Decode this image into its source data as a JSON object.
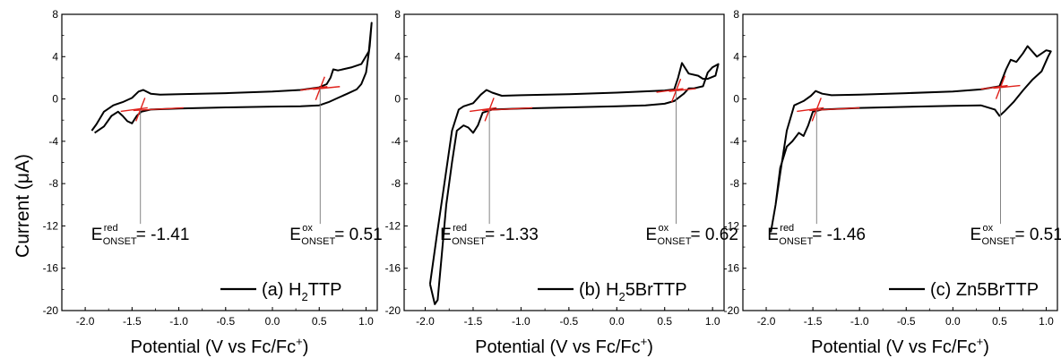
{
  "figure": {
    "ylabel": "Current (μA)",
    "xlabel": "Potential (V vs Fc/Fc",
    "xlabel_sup": "+",
    "xlabel_end": ")"
  },
  "chart_data": [
    {
      "type": "line",
      "panel": "a",
      "legend": "(a) H₂TTP",
      "legend_parts": [
        "(a) H",
        "2",
        "TTP"
      ],
      "xlim": [
        -2.25,
        1.12
      ],
      "ylim": [
        -20,
        8
      ],
      "xticks": [
        -2.0,
        -1.5,
        -1.0,
        -0.5,
        0.0,
        0.5,
        1.0
      ],
      "xtick_labels": [
        "-2.0",
        "-1.5",
        "-1.0",
        "-0.5",
        "0.0",
        "0.5",
        "1.0"
      ],
      "yticks": [
        8,
        4,
        0,
        -4,
        -8,
        -12,
        -16,
        -20
      ],
      "ytick_labels": [
        "8",
        "4",
        "0",
        "-4",
        "-8",
        "-12",
        "-16",
        "-20"
      ],
      "onset_red": {
        "label": "E",
        "sup": "red",
        "sub": "ONSET",
        "value": "= -1.41",
        "x": -1.41,
        "y": -1.0
      },
      "onset_ox": {
        "label": "E",
        "sup": "ox",
        "sub": "ONSET",
        "value": "= 0.51",
        "x": 0.51,
        "y": 1.0
      },
      "series": [
        {
          "values": [
            [
              -1.9,
              -3.2
            ],
            [
              -1.8,
              -2.6
            ],
            [
              -1.72,
              -1.6
            ],
            [
              -1.65,
              -1.2
            ],
            [
              -1.6,
              -1.6
            ],
            [
              -1.55,
              -2.1
            ],
            [
              -1.5,
              -2.3
            ],
            [
              -1.45,
              -1.6
            ],
            [
              -1.4,
              -1.2
            ],
            [
              -1.3,
              -1.0
            ],
            [
              -1.0,
              -0.9
            ],
            [
              -0.5,
              -0.8
            ],
            [
              0.0,
              -0.72
            ],
            [
              0.3,
              -0.7
            ],
            [
              0.5,
              -0.6
            ],
            [
              0.6,
              -0.3
            ],
            [
              0.7,
              0.1
            ],
            [
              0.8,
              0.5
            ],
            [
              0.9,
              0.9
            ],
            [
              0.95,
              1.4
            ],
            [
              1.0,
              2.5
            ],
            [
              1.04,
              5.0
            ],
            [
              1.06,
              7.2
            ],
            [
              1.03,
              4.5
            ],
            [
              0.95,
              3.3
            ],
            [
              0.85,
              3.0
            ],
            [
              0.75,
              2.8
            ],
            [
              0.7,
              2.7
            ],
            [
              0.65,
              2.8
            ],
            [
              0.62,
              2.0
            ],
            [
              0.58,
              1.4
            ],
            [
              0.5,
              1.1
            ],
            [
              0.3,
              0.85
            ],
            [
              0.0,
              0.7
            ],
            [
              -0.5,
              0.55
            ],
            [
              -1.0,
              0.45
            ],
            [
              -1.2,
              0.4
            ],
            [
              -1.3,
              0.5
            ],
            [
              -1.38,
              0.85
            ],
            [
              -1.43,
              0.7
            ],
            [
              -1.5,
              0.1
            ],
            [
              -1.6,
              -0.3
            ],
            [
              -1.7,
              -0.6
            ],
            [
              -1.8,
              -1.2
            ],
            [
              -1.88,
              -2.4
            ],
            [
              -1.93,
              -3.0
            ]
          ]
        }
      ]
    },
    {
      "type": "line",
      "panel": "b",
      "legend": "(b) H₂5BrTTP",
      "legend_parts": [
        "(b) H",
        "2",
        "5BrTTP"
      ],
      "xlim": [
        -2.22,
        1.12
      ],
      "ylim": [
        -20,
        8
      ],
      "xticks": [
        -2.0,
        -1.5,
        -1.0,
        -0.5,
        0.0,
        0.5,
        1.0
      ],
      "xtick_labels": [
        "-2.0",
        "-1.5",
        "-1.0",
        "-0.5",
        "0.0",
        "0.5",
        "1.0"
      ],
      "yticks": [
        8,
        4,
        0,
        -4,
        -8,
        -12,
        -16,
        -20
      ],
      "ytick_labels": [
        "8",
        "4",
        "0",
        "-4",
        "-8",
        "-12",
        "-16",
        "-20"
      ],
      "onset_red": {
        "label": "E",
        "sup": "red",
        "sub": "ONSET",
        "value": "= -1.33",
        "x": -1.33,
        "y": -1.0
      },
      "onset_ox": {
        "label": "E",
        "sup": "ox",
        "sub": "ONSET",
        "value": "= 0.62",
        "x": 0.62,
        "y": 0.8
      },
      "series": [
        {
          "values": [
            [
              -1.95,
              -17.5
            ],
            [
              -1.9,
              -19.4
            ],
            [
              -1.87,
              -19.0
            ],
            [
              -1.83,
              -15.0
            ],
            [
              -1.78,
              -10.0
            ],
            [
              -1.72,
              -6.0
            ],
            [
              -1.67,
              -3.0
            ],
            [
              -1.6,
              -2.5
            ],
            [
              -1.55,
              -2.7
            ],
            [
              -1.5,
              -3.2
            ],
            [
              -1.45,
              -2.5
            ],
            [
              -1.4,
              -1.3
            ],
            [
              -1.3,
              -1.0
            ],
            [
              -1.0,
              -0.9
            ],
            [
              -0.5,
              -0.8
            ],
            [
              0.0,
              -0.7
            ],
            [
              0.3,
              -0.6
            ],
            [
              0.5,
              -0.45
            ],
            [
              0.6,
              -0.2
            ],
            [
              0.7,
              0.5
            ],
            [
              0.75,
              1.0
            ],
            [
              0.8,
              1.0
            ],
            [
              0.9,
              1.2
            ],
            [
              0.95,
              2.5
            ],
            [
              1.0,
              3.0
            ],
            [
              1.06,
              3.3
            ],
            [
              1.03,
              2.2
            ],
            [
              0.95,
              1.9
            ],
            [
              0.9,
              1.9
            ],
            [
              0.85,
              2.2
            ],
            [
              0.75,
              2.4
            ],
            [
              0.68,
              3.4
            ],
            [
              0.64,
              2.0
            ],
            [
              0.6,
              0.9
            ],
            [
              0.5,
              0.8
            ],
            [
              0.0,
              0.6
            ],
            [
              -0.5,
              0.45
            ],
            [
              -1.0,
              0.35
            ],
            [
              -1.2,
              0.3
            ],
            [
              -1.3,
              0.6
            ],
            [
              -1.36,
              0.85
            ],
            [
              -1.42,
              0.4
            ],
            [
              -1.5,
              -0.4
            ],
            [
              -1.6,
              -0.7
            ],
            [
              -1.65,
              -1.0
            ],
            [
              -1.72,
              -3.0
            ],
            [
              -1.8,
              -8.0
            ],
            [
              -1.88,
              -13.0
            ],
            [
              -1.95,
              -17.5
            ]
          ]
        }
      ]
    },
    {
      "type": "line",
      "panel": "c",
      "legend": "(c) Zn5BrTTP",
      "legend_parts": [
        "(c) Zn5BrTTP"
      ],
      "xlim": [
        -2.25,
        1.12
      ],
      "ylim": [
        -20,
        8
      ],
      "xticks": [
        -2.0,
        -1.5,
        -1.0,
        -0.5,
        0.0,
        0.5,
        1.0
      ],
      "xtick_labels": [
        "-2.0",
        "-1.5",
        "-1.0",
        "-0.5",
        "0.0",
        "0.5",
        "1.0"
      ],
      "yticks": [
        8,
        4,
        0,
        -4,
        -8,
        -12,
        -16,
        -20
      ],
      "ytick_labels": [
        "8",
        "4",
        "0",
        "-4",
        "-8",
        "-12",
        "-16",
        "-20"
      ],
      "onset_red": {
        "label": "E",
        "sup": "red",
        "sub": "ONSET",
        "value": "= -1.46",
        "x": -1.46,
        "y": -1.0
      },
      "onset_ox": {
        "label": "E",
        "sup": "ox",
        "sub": "ONSET",
        "value": "= 0.51",
        "x": 0.51,
        "y": 1.1
      },
      "series": [
        {
          "values": [
            [
              -1.95,
              -12.6
            ],
            [
              -1.9,
              -10.0
            ],
            [
              -1.85,
              -6.5
            ],
            [
              -1.78,
              -4.5
            ],
            [
              -1.72,
              -4.0
            ],
            [
              -1.65,
              -3.2
            ],
            [
              -1.6,
              -3.5
            ],
            [
              -1.55,
              -2.5
            ],
            [
              -1.5,
              -1.2
            ],
            [
              -1.4,
              -1.0
            ],
            [
              -1.0,
              -0.85
            ],
            [
              -0.5,
              -0.75
            ],
            [
              0.0,
              -0.65
            ],
            [
              0.3,
              -0.6
            ],
            [
              0.45,
              -1.0
            ],
            [
              0.5,
              -1.6
            ],
            [
              0.55,
              -1.2
            ],
            [
              0.65,
              -0.3
            ],
            [
              0.75,
              0.8
            ],
            [
              0.85,
              1.8
            ],
            [
              0.95,
              2.6
            ],
            [
              1.02,
              4.0
            ],
            [
              1.05,
              4.5
            ],
            [
              1.0,
              4.6
            ],
            [
              0.9,
              4.0
            ],
            [
              0.8,
              5.0
            ],
            [
              0.75,
              4.3
            ],
            [
              0.68,
              3.5
            ],
            [
              0.62,
              3.7
            ],
            [
              0.57,
              2.8
            ],
            [
              0.5,
              1.2
            ],
            [
              0.3,
              0.9
            ],
            [
              0.0,
              0.7
            ],
            [
              -0.5,
              0.55
            ],
            [
              -1.0,
              0.4
            ],
            [
              -1.3,
              0.35
            ],
            [
              -1.4,
              0.5
            ],
            [
              -1.47,
              0.75
            ],
            [
              -1.52,
              0.3
            ],
            [
              -1.6,
              -0.2
            ],
            [
              -1.7,
              -0.6
            ],
            [
              -1.78,
              -3.0
            ],
            [
              -1.85,
              -7.0
            ],
            [
              -1.9,
              -10.0
            ],
            [
              -1.95,
              -12.6
            ]
          ]
        }
      ]
    }
  ]
}
